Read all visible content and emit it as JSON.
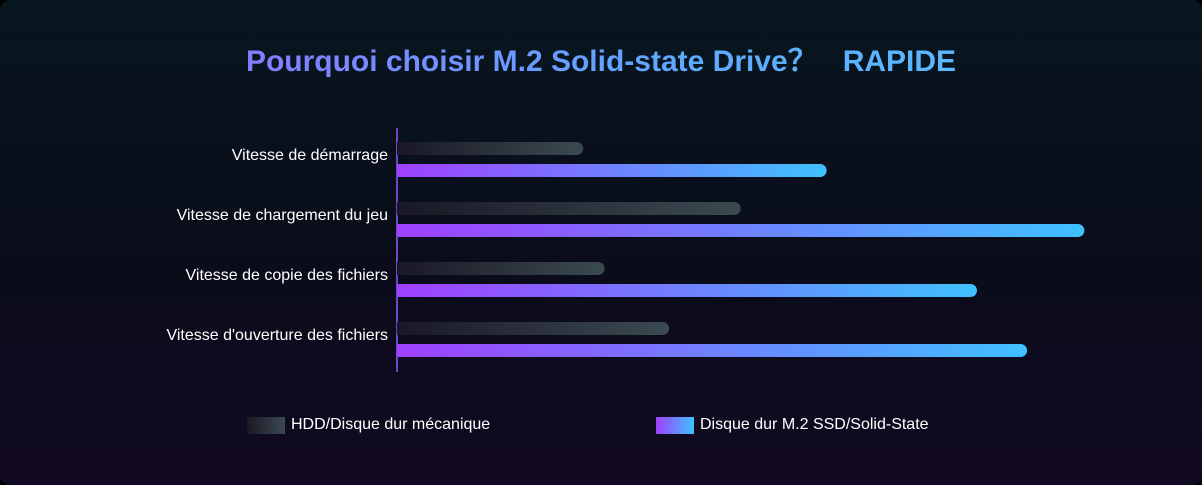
{
  "title": "Pourquoi choisir M.2 Solid-state Drive？   RAPIDE",
  "chart_data": {
    "type": "bar",
    "orientation": "horizontal",
    "title": "Pourquoi choisir M.2 Solid-state Drive？   RAPIDE",
    "categories": [
      "Vitesse de démarrage",
      "Vitesse de chargement du jeu",
      "Vitesse de copie des fichiers",
      "Vitesse d'ouverture des fichiers"
    ],
    "series": [
      {
        "name": "HDD/Disque dur mécanique",
        "values": [
          26,
          48,
          29,
          38
        ],
        "color_start": "#1a1826",
        "color_end": "#3b4a50"
      },
      {
        "name": "Disque dur M.2 SSD/Solid-State",
        "values": [
          60,
          96,
          81,
          88
        ],
        "color_start": "#a040ff",
        "color_end": "#3fc1ff"
      }
    ],
    "xlim": [
      0,
      100
    ],
    "grid": false,
    "legend_position": "bottom",
    "xlabel": "",
    "ylabel": ""
  },
  "legend": {
    "hdd_label": "HDD/Disque dur mécanique",
    "ssd_label": "Disque dur M.2 SSD/Solid-State"
  },
  "colors": {
    "axis": "#8a5cff",
    "axis_bottom": "#6f6fff",
    "title_start": "#9a63ff",
    "title_end": "#58c6ff"
  }
}
